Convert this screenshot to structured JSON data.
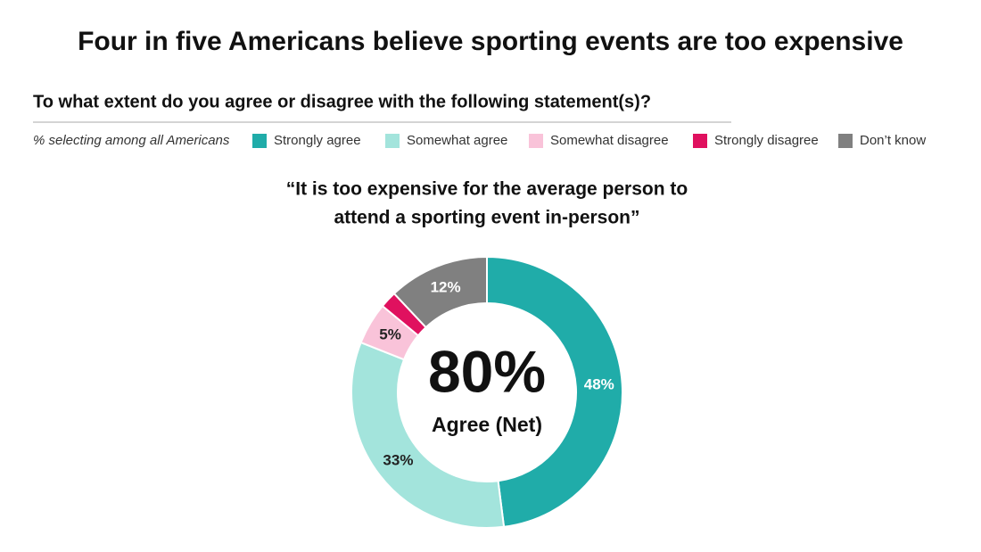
{
  "chart_data": {
    "type": "donut",
    "title": "Four in five Americans believe sporting events are too expensive",
    "subtitle": "To what extent do you agree or disagree with the following statement(s)?",
    "legend_note": "% selecting among all Americans",
    "chart_title_lines": [
      "“It is too expensive for the average person to",
      "attend a sporting event in-person”"
    ],
    "categories": [
      "Strongly agree",
      "Somewhat agree",
      "Somewhat disagree",
      "Strongly disagree",
      "Don’t know"
    ],
    "values": [
      48,
      33,
      5,
      2,
      12
    ],
    "value_labels": [
      "48%",
      "33%",
      "5%",
      null,
      "12%"
    ],
    "colors": [
      "#20aca9",
      "#a3e4dc",
      "#f9c3d9",
      "#e0115f",
      "#808080"
    ],
    "center_label": "80%",
    "center_caption": "Agree (Net)"
  }
}
